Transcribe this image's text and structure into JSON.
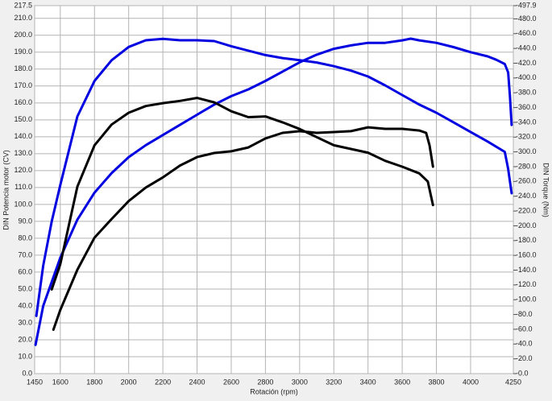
{
  "chart_data": {
    "type": "line",
    "xlabel": "Rotación (rpm)",
    "ylabel": "DIN Potencia motor (CV)",
    "y2label": "DIN Torque (Nm)",
    "xlim": [
      1450,
      4250
    ],
    "xticks": [
      1450,
      1600,
      1800,
      2000,
      2200,
      2400,
      2600,
      2800,
      3000,
      3200,
      3400,
      3600,
      3800,
      4000,
      4250
    ],
    "ylim": [
      0,
      217.5
    ],
    "yticks": [
      {
        "value": 0,
        "label": "0.0"
      },
      {
        "value": 10,
        "label": "10.0"
      },
      {
        "value": 20,
        "label": "20.0"
      },
      {
        "value": 30,
        "label": "30.0"
      },
      {
        "value": 40,
        "label": "40.0"
      },
      {
        "value": 50,
        "label": "50.0"
      },
      {
        "value": 60,
        "label": "60.0"
      },
      {
        "value": 70,
        "label": "70.0"
      },
      {
        "value": 80,
        "label": "80.0"
      },
      {
        "value": 90,
        "label": "90.0"
      },
      {
        "value": 100,
        "label": "100.0"
      },
      {
        "value": 110,
        "label": "110.0"
      },
      {
        "value": 120,
        "label": "120.0"
      },
      {
        "value": 130,
        "label": "130.0"
      },
      {
        "value": 140,
        "label": "140.0"
      },
      {
        "value": 150,
        "label": "150.0"
      },
      {
        "value": 160,
        "label": "160.0"
      },
      {
        "value": 170,
        "label": "170.0"
      },
      {
        "value": 180,
        "label": "180.0"
      },
      {
        "value": 190,
        "label": "190.0"
      },
      {
        "value": 200,
        "label": "200.0"
      },
      {
        "value": 210,
        "label": "210.0"
      },
      {
        "value": 217.5,
        "label": "217.5"
      }
    ],
    "y2lim": [
      0,
      497.9
    ],
    "y2ticks": [
      {
        "value": 0,
        "label": "-0.0"
      },
      {
        "value": 20,
        "label": "-20.0"
      },
      {
        "value": 40,
        "label": "-40.0"
      },
      {
        "value": 60,
        "label": "-60.0"
      },
      {
        "value": 80,
        "label": "-80.0"
      },
      {
        "value": 100,
        "label": "-100.0"
      },
      {
        "value": 120,
        "label": "-120.0"
      },
      {
        "value": 140,
        "label": "-140.0"
      },
      {
        "value": 160,
        "label": "-160.0"
      },
      {
        "value": 180,
        "label": "-180.0"
      },
      {
        "value": 200,
        "label": "-200.0"
      },
      {
        "value": 220,
        "label": "-220.0"
      },
      {
        "value": 240,
        "label": "-240.0"
      },
      {
        "value": 260,
        "label": "-260.0"
      },
      {
        "value": 280,
        "label": "-280.0"
      },
      {
        "value": 300,
        "label": "-300.0"
      },
      {
        "value": 320,
        "label": "-320.0"
      },
      {
        "value": 340,
        "label": "-340.0"
      },
      {
        "value": 360,
        "label": "-360.0"
      },
      {
        "value": 380,
        "label": "-380.0"
      },
      {
        "value": 400,
        "label": "-400.0"
      },
      {
        "value": 420,
        "label": "-420.0"
      },
      {
        "value": 440,
        "label": "-440.0"
      },
      {
        "value": 460,
        "label": "-460.0"
      },
      {
        "value": 480,
        "label": "-480.0"
      },
      {
        "value": 497.9,
        "label": "-497.9"
      }
    ],
    "grid": true,
    "series": [
      {
        "color": "#0000e0",
        "axis": "y",
        "x": [
          1455,
          1500,
          1600,
          1700,
          1800,
          1900,
          2000,
          2100,
          2200,
          2300,
          2400,
          2500,
          2600,
          2700,
          2800,
          2900,
          3000,
          3100,
          3200,
          3300,
          3400,
          3500,
          3600,
          3650,
          3700,
          3800,
          3900,
          4000,
          4100,
          4150,
          4200,
          4220,
          4230,
          4240
        ],
        "values": [
          17,
          40,
          68.5,
          91,
          107,
          118.5,
          128,
          135,
          141,
          147,
          153,
          159,
          164,
          168,
          173,
          178.5,
          184,
          188.5,
          192,
          194,
          195.5,
          195.5,
          197,
          198,
          197,
          195.5,
          193,
          190,
          187.5,
          185.5,
          183,
          178,
          164,
          147
        ]
      },
      {
        "color": "#0000e0",
        "axis": "y2",
        "x": [
          1460,
          1500,
          1550,
          1600,
          1700,
          1800,
          1900,
          2000,
          2100,
          2200,
          2300,
          2400,
          2500,
          2600,
          2700,
          2800,
          2900,
          3000,
          3100,
          3200,
          3300,
          3400,
          3500,
          3600,
          3700,
          3800,
          3900,
          4000,
          4100,
          4200,
          4220,
          4240
        ],
        "values": [
          78,
          146,
          206,
          255,
          348,
          396,
          424,
          442,
          451,
          453,
          451,
          451,
          450,
          443,
          437,
          431,
          427,
          424,
          421,
          416,
          410,
          402,
          390,
          377,
          364,
          353,
          340,
          327,
          314,
          300,
          277,
          244
        ]
      },
      {
        "color": "#000000",
        "axis": "y",
        "x": [
          1560,
          1600,
          1700,
          1800,
          1900,
          2000,
          2100,
          2200,
          2300,
          2400,
          2500,
          2600,
          2700,
          2800,
          2900,
          3000,
          3100,
          3200,
          3300,
          3400,
          3500,
          3600,
          3700,
          3740,
          3760,
          3780
        ],
        "values": [
          26,
          37.6,
          61.4,
          80.4,
          91.4,
          102,
          110,
          116,
          123,
          128,
          130.4,
          131.4,
          133.7,
          139,
          142.3,
          143.3,
          142.3,
          142.8,
          143.3,
          145.6,
          144.7,
          144.7,
          143.7,
          142.3,
          135,
          122.3
        ]
      },
      {
        "color": "#000000",
        "axis": "y2",
        "x": [
          1550,
          1600,
          1700,
          1800,
          1900,
          2000,
          2100,
          2200,
          2300,
          2400,
          2500,
          2600,
          2700,
          2800,
          2900,
          3000,
          3100,
          3200,
          3300,
          3400,
          3500,
          3600,
          3700,
          3750,
          3780
        ],
        "values": [
          114,
          148,
          253,
          309,
          337,
          353,
          362,
          366,
          369,
          373,
          367,
          355,
          347,
          348,
          340,
          331,
          320,
          309,
          304,
          299,
          288,
          280,
          271,
          260,
          228
        ]
      }
    ]
  }
}
